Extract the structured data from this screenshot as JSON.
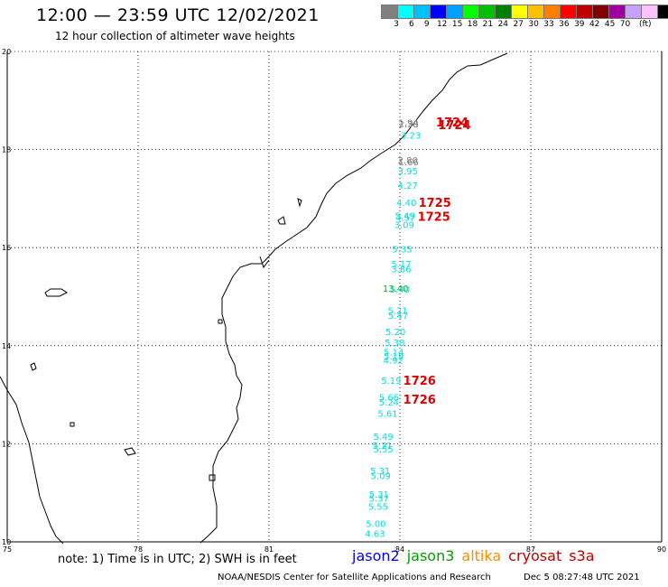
{
  "title": "12:00 — 23:59 UTC 12/02/2021",
  "subtitle": "12 hour collection of altimeter wave heights",
  "scale": {
    "unit": "(ft)",
    "colors": [
      "#808080",
      "#00ffff",
      "#00c0ff",
      "#0000ff",
      "#00a0ff",
      "#00ff00",
      "#00c000",
      "#008000",
      "#ffff00",
      "#ffc000",
      "#ff8000",
      "#ff0000",
      "#c00000",
      "#800000",
      "#a000a0",
      "#c8a0ff",
      "#ffc0ff",
      "#000000"
    ],
    "labels": [
      "3",
      "6",
      "9",
      "12",
      "15",
      "18",
      "21",
      "24",
      "27",
      "30",
      "33",
      "36",
      "39",
      "42",
      "45",
      "70"
    ]
  },
  "map": {
    "lat_labels": [
      "20",
      "18",
      "16",
      "14",
      "12",
      "10"
    ],
    "lon_labels": [
      "75",
      "78",
      "81",
      "84",
      "87",
      "90"
    ],
    "observations": [
      {
        "label": "1.94",
        "color": "#808080",
        "lon": 84.2,
        "lat": 18.48
      },
      {
        "label": "2.38",
        "color": "#808080",
        "lon": 84.2,
        "lat": 18.45
      },
      {
        "label": "3.23",
        "color": "#00e0e0",
        "lon": 84.25,
        "lat": 18.22
      },
      {
        "label": "2.80",
        "color": "#808080",
        "lon": 84.18,
        "lat": 17.72
      },
      {
        "label": "1.66",
        "color": "#808080",
        "lon": 84.2,
        "lat": 17.68
      },
      {
        "label": "3.95",
        "color": "#00e0e0",
        "lon": 84.18,
        "lat": 17.5
      },
      {
        "label": "4.27",
        "color": "#00e0e0",
        "lon": 84.18,
        "lat": 17.2
      },
      {
        "label": "4.40",
        "color": "#00e0e0",
        "lon": 84.15,
        "lat": 16.85
      },
      {
        "label": "5.49",
        "color": "#00e0e0",
        "lon": 84.12,
        "lat": 16.58
      },
      {
        "label": "4.57",
        "color": "#00e0e0",
        "lon": 84.13,
        "lat": 16.55
      },
      {
        "label": "3.09",
        "color": "#00e0e0",
        "lon": 84.1,
        "lat": 16.4
      },
      {
        "label": "5.35",
        "color": "#00e0e0",
        "lon": 84.05,
        "lat": 15.9
      },
      {
        "label": "5.17",
        "color": "#00e0e0",
        "lon": 84.03,
        "lat": 15.6
      },
      {
        "label": "3.86",
        "color": "#00e0e0",
        "lon": 84.03,
        "lat": 15.5
      },
      {
        "label": "13.40",
        "color": "#00c000",
        "lon": 83.9,
        "lat": 15.1
      },
      {
        "label": "5.40",
        "color": "#00e0e0",
        "lon": 84.0,
        "lat": 15.08
      },
      {
        "label": "5.21",
        "color": "#00e0e0",
        "lon": 83.95,
        "lat": 14.65
      },
      {
        "label": "5.47",
        "color": "#00e0e0",
        "lon": 83.96,
        "lat": 14.55
      },
      {
        "label": "5.20",
        "color": "#00e0e0",
        "lon": 83.9,
        "lat": 14.22
      },
      {
        "label": "5.38",
        "color": "#00e0e0",
        "lon": 83.88,
        "lat": 14.0
      },
      {
        "label": "5.14",
        "color": "#00e0e0",
        "lon": 83.86,
        "lat": 13.8
      },
      {
        "label": "5.19",
        "color": "#00e0e0",
        "lon": 83.86,
        "lat": 13.72
      },
      {
        "label": "4.92",
        "color": "#00e0e0",
        "lon": 83.85,
        "lat": 13.64
      },
      {
        "label": "5.19",
        "color": "#00e0e0",
        "lon": 83.8,
        "lat": 13.22
      },
      {
        "label": "5.66",
        "color": "#00e0e0",
        "lon": 83.75,
        "lat": 12.88
      },
      {
        "label": "5.24",
        "color": "#00e0e0",
        "lon": 83.75,
        "lat": 12.78
      },
      {
        "label": "5.61",
        "color": "#00e0e0",
        "lon": 83.72,
        "lat": 12.55
      },
      {
        "label": "5.49",
        "color": "#00e0e0",
        "lon": 83.62,
        "lat": 12.08
      },
      {
        "label": "5.31",
        "color": "#00e0e0",
        "lon": 83.6,
        "lat": 11.9
      },
      {
        "label": "5.55",
        "color": "#00e0e0",
        "lon": 83.62,
        "lat": 11.82
      },
      {
        "label": "5.31",
        "color": "#00e0e0",
        "lon": 83.55,
        "lat": 11.38
      },
      {
        "label": "5.09",
        "color": "#00e0e0",
        "lon": 83.56,
        "lat": 11.28
      },
      {
        "label": "5.31",
        "color": "#00e0e0",
        "lon": 83.52,
        "lat": 10.9
      },
      {
        "label": "5.37",
        "color": "#00e0e0",
        "lon": 83.52,
        "lat": 10.82
      },
      {
        "label": "5.55",
        "color": "#00e0e0",
        "lon": 83.5,
        "lat": 10.65
      },
      {
        "label": "5.00",
        "color": "#00e0e0",
        "lon": 83.45,
        "lat": 10.3
      },
      {
        "label": "4.63",
        "color": "#00e0e0",
        "lon": 83.43,
        "lat": 10.1
      }
    ],
    "times": [
      {
        "label": "1724",
        "lon": 85.2,
        "lat": 18.47
      },
      {
        "label": "1724",
        "lon": 85.25,
        "lat": 18.42
      },
      {
        "label": "1725",
        "lon": 84.8,
        "lat": 16.83
      },
      {
        "label": "1725",
        "lon": 84.78,
        "lat": 16.55
      },
      {
        "label": "1726",
        "lon": 84.45,
        "lat": 13.2
      },
      {
        "label": "1726",
        "lon": 84.45,
        "lat": 12.82
      }
    ]
  },
  "note": "note:  1) Time is in UTC;  2) SWH is in feet",
  "satellites": [
    {
      "name": "jason2",
      "color": "#0000ff"
    },
    {
      "name": "jason3",
      "color": "#00a000"
    },
    {
      "name": "altika",
      "color": "#ff8c00"
    },
    {
      "name": "cryosat",
      "color": "#c00000"
    },
    {
      "name": "s3a",
      "color": "#c00000"
    }
  ],
  "footer_left": "NOAA/NESDIS Center for Satellite Applications and Research",
  "footer_right": "Dec  5 08:27:48 UTC 2021"
}
